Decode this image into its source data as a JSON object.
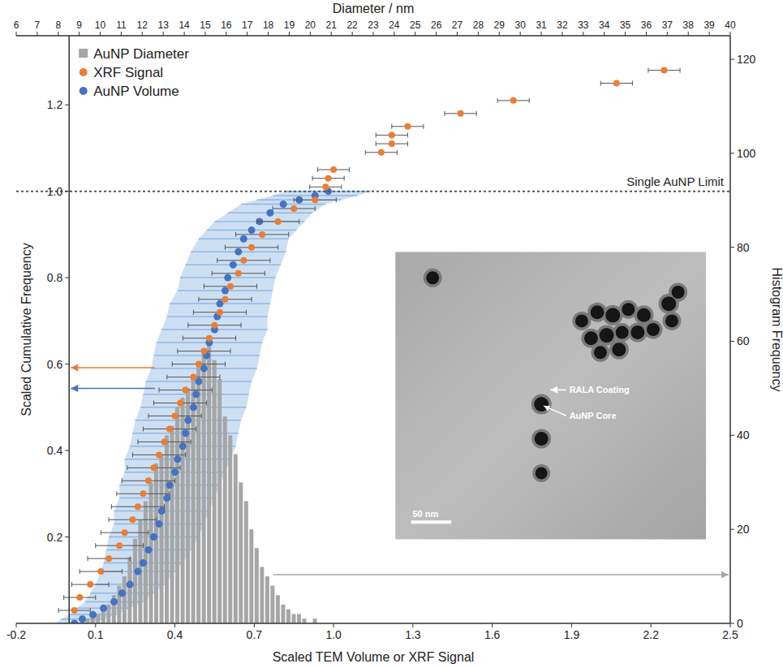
{
  "chart_data": {
    "type": "scatter",
    "x_label": "Scaled TEM Volume or XRF Signal",
    "x2_label": "Diameter / nm",
    "y_label": "Scaled Cumulative Frequency",
    "y2_label": "Histogram Frequency",
    "xlim": [
      -0.2,
      2.5
    ],
    "xticks": [
      -0.2,
      0.1,
      0.4,
      0.7,
      {
        "value": 1,
        "label": "1.0"
      },
      1.3,
      1.6,
      1.9,
      2.2,
      2.5
    ],
    "x2lim": [
      6,
      40
    ],
    "x2ticks": [
      6,
      7,
      8,
      9,
      10,
      11,
      12,
      13,
      14,
      15,
      16,
      17,
      18,
      19,
      20,
      21,
      22,
      23,
      24,
      25,
      26,
      27,
      28,
      29,
      30,
      31,
      32,
      33,
      34,
      35,
      36,
      37,
      38,
      39,
      40
    ],
    "ylim": [
      0,
      1.36
    ],
    "yticks": [
      0.2,
      0.4,
      0.6,
      0.8,
      {
        "value": 1,
        "label": "1.0"
      },
      1.2
    ],
    "y2lim": [
      0,
      125
    ],
    "y2ticks": [
      0,
      20,
      40,
      60,
      80,
      100,
      120
    ],
    "grid": false,
    "legend": "upper left",
    "annotations": [
      {
        "text": "Single AuNP Limit",
        "y": 1
      }
    ],
    "series": [
      {
        "name": "AuNP Diameter",
        "type": "bar",
        "axis": "y2",
        "color": "#a6a6a6",
        "marker": "square",
        "bins": [
          0.04,
          0.06,
          0.08,
          0.1,
          0.12,
          0.14,
          0.16,
          0.18,
          0.2,
          0.22,
          0.24,
          0.26,
          0.28,
          0.3,
          0.32,
          0.34,
          0.36,
          0.38,
          0.4,
          0.42,
          0.44,
          0.46,
          0.48,
          0.5,
          0.52,
          0.54,
          0.56,
          0.58,
          0.6,
          0.62,
          0.64,
          0.66,
          0.68,
          0.7,
          0.72,
          0.74,
          0.76,
          0.78,
          0.8,
          0.82,
          0.84,
          0.86,
          0.88,
          0.9,
          0.92,
          0.94,
          0.96
        ],
        "values": [
          1,
          1,
          2,
          2,
          3,
          4,
          6,
          8,
          10,
          14,
          18,
          22,
          26,
          30,
          34,
          36,
          40,
          42,
          46,
          48,
          50,
          52,
          55,
          58,
          61,
          56,
          52,
          44,
          40,
          36,
          30,
          26,
          20,
          16,
          12,
          10,
          8,
          6,
          4,
          3,
          2,
          2,
          1,
          0,
          1,
          0
        ]
      },
      {
        "name": "XRF Signal",
        "type": "scatter",
        "color": "#ed7d31",
        "marker": "circle",
        "x": [
          0.02,
          0.04,
          0.08,
          0.12,
          0.15,
          0.19,
          0.21,
          0.24,
          0.26,
          0.28,
          0.3,
          0.32,
          0.34,
          0.36,
          0.38,
          0.4,
          0.42,
          0.44,
          0.47,
          0.49,
          0.51,
          0.53,
          0.55,
          0.57,
          0.59,
          0.61,
          0.64,
          0.66,
          0.69,
          0.73,
          0.79,
          0.85,
          0.93,
          0.97,
          0.98,
          1.0,
          1.18,
          1.22,
          1.22,
          1.28,
          1.48,
          1.68,
          2.07,
          2.25
        ],
        "values": [
          0.03,
          0.06,
          0.09,
          0.12,
          0.15,
          0.18,
          0.21,
          0.24,
          0.27,
          0.3,
          0.33,
          0.36,
          0.39,
          0.42,
          0.45,
          0.48,
          0.51,
          0.54,
          0.57,
          0.6,
          0.63,
          0.66,
          0.69,
          0.72,
          0.75,
          0.78,
          0.81,
          0.84,
          0.87,
          0.9,
          0.93,
          0.96,
          0.98,
          1.01,
          1.03,
          1.05,
          1.09,
          1.11,
          1.13,
          1.15,
          1.18,
          1.21,
          1.25,
          1.28
        ],
        "x_error": [
          0.06,
          0.06,
          0.07,
          0.08,
          0.08,
          0.09,
          0.09,
          0.09,
          0.1,
          0.1,
          0.1,
          0.1,
          0.1,
          0.1,
          0.1,
          0.1,
          0.1,
          0.1,
          0.1,
          0.1,
          0.1,
          0.1,
          0.1,
          0.1,
          0.1,
          0.1,
          0.1,
          0.1,
          0.1,
          0.1,
          0.08,
          0.08,
          0.08,
          0.06,
          0.06,
          0.06,
          0.06,
          0.06,
          0.06,
          0.06,
          0.06,
          0.06,
          0.06,
          0.06
        ]
      },
      {
        "name": "AuNP Volume",
        "type": "scatter",
        "color": "#4472c4",
        "marker": "circle",
        "x": [
          0.02,
          0.05,
          0.09,
          0.13,
          0.17,
          0.2,
          0.23,
          0.26,
          0.28,
          0.3,
          0.32,
          0.34,
          0.35,
          0.37,
          0.38,
          0.4,
          0.41,
          0.43,
          0.44,
          0.45,
          0.47,
          0.48,
          0.49,
          0.51,
          0.52,
          0.53,
          0.55,
          0.56,
          0.57,
          0.59,
          0.6,
          0.62,
          0.64,
          0.66,
          0.69,
          0.72,
          0.76,
          0.81,
          0.87,
          0.93,
          0.98
        ],
        "values": [
          0.0,
          0.01,
          0.02,
          0.035,
          0.05,
          0.07,
          0.09,
          0.12,
          0.14,
          0.17,
          0.2,
          0.23,
          0.26,
          0.29,
          0.32,
          0.35,
          0.38,
          0.41,
          0.44,
          0.47,
          0.5,
          0.53,
          0.56,
          0.59,
          0.62,
          0.65,
          0.68,
          0.71,
          0.74,
          0.77,
          0.8,
          0.83,
          0.86,
          0.89,
          0.91,
          0.93,
          0.95,
          0.97,
          0.98,
          0.99,
          1.0
        ],
        "x_error": [
          0.07,
          0.08,
          0.09,
          0.1,
          0.11,
          0.12,
          0.13,
          0.14,
          0.15,
          0.16,
          0.17,
          0.17,
          0.18,
          0.18,
          0.19,
          0.19,
          0.2,
          0.2,
          0.2,
          0.2,
          0.2,
          0.2,
          0.2,
          0.2,
          0.2,
          0.2,
          0.2,
          0.19,
          0.19,
          0.18,
          0.18,
          0.18,
          0.18,
          0.17,
          0.17,
          0.17,
          0.16,
          0.16,
          0.16,
          0.16,
          0.16
        ]
      }
    ],
    "inset": {
      "labels": [
        "RALA Coating",
        "AuNP Core"
      ],
      "scale_bar": "50 nm"
    }
  }
}
